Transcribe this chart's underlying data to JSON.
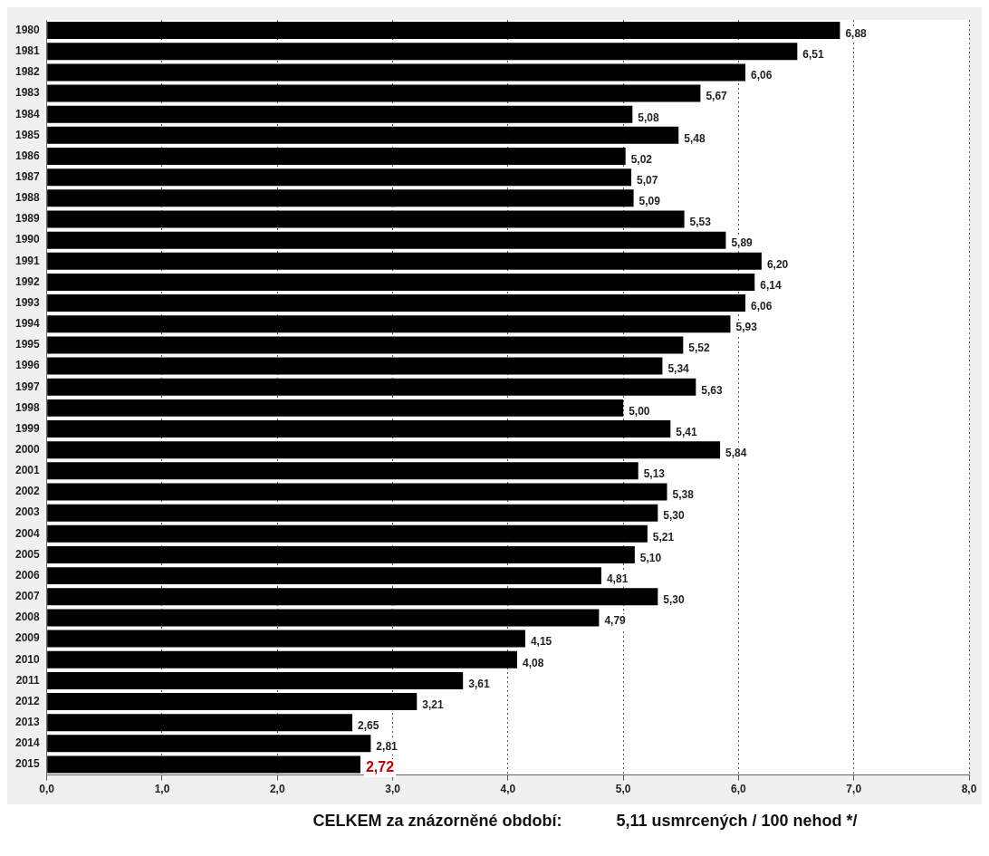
{
  "chart_data": {
    "type": "bar",
    "orientation": "horizontal",
    "categories": [
      "1980",
      "1981",
      "1982",
      "1983",
      "1984",
      "1985",
      "1986",
      "1987",
      "1988",
      "1989",
      "1990",
      "1991",
      "1992",
      "1993",
      "1994",
      "1995",
      "1996",
      "1997",
      "1998",
      "1999",
      "2000",
      "2001",
      "2002",
      "2003",
      "2004",
      "2005",
      "2006",
      "2007",
      "2008",
      "2009",
      "2010",
      "2011",
      "2012",
      "2013",
      "2014",
      "2015"
    ],
    "values": [
      6.88,
      6.51,
      6.06,
      5.67,
      5.08,
      5.48,
      5.02,
      5.07,
      5.09,
      5.53,
      5.89,
      6.2,
      6.14,
      6.06,
      5.93,
      5.52,
      5.34,
      5.63,
      5.0,
      5.41,
      5.84,
      5.13,
      5.38,
      5.3,
      5.21,
      5.1,
      4.81,
      5.3,
      4.79,
      4.15,
      4.08,
      3.61,
      3.21,
      2.65,
      2.81,
      2.72
    ],
    "value_labels": [
      "6,88",
      "6,51",
      "6,06",
      "5,67",
      "5,08",
      "5,48",
      "5,02",
      "5,07",
      "5,09",
      "5,53",
      "5,89",
      "6,20",
      "6,14",
      "6,06",
      "5,93",
      "5,52",
      "5,34",
      "5,63",
      "5,00",
      "5,41",
      "5,84",
      "5,13",
      "5,38",
      "5,30",
      "5,21",
      "5,10",
      "4,81",
      "5,30",
      "4,79",
      "4,15",
      "4,08",
      "3,61",
      "3,21",
      "2,65",
      "2,81",
      null
    ],
    "color": "#000000",
    "xlim": [
      0,
      8
    ],
    "xticks": [
      {
        "value": 0,
        "label": "0,0"
      },
      {
        "value": 1,
        "label": "1,0"
      },
      {
        "value": 2,
        "label": "2,0"
      },
      {
        "value": 3,
        "label": "3,0"
      },
      {
        "value": 4,
        "label": "4,0"
      },
      {
        "value": 5,
        "label": "5,0"
      },
      {
        "value": 6,
        "label": "6,0"
      },
      {
        "value": 7,
        "label": "7,0"
      },
      {
        "value": 8,
        "label": "8,0"
      }
    ],
    "grid": "x",
    "legend": false,
    "annotations": [
      {
        "text": "2,72",
        "x": 2.72,
        "y": "2015"
      },
      "CELKEM za znázorněné období:",
      "5,11 usmrcených / 100 nehod */"
    ]
  }
}
